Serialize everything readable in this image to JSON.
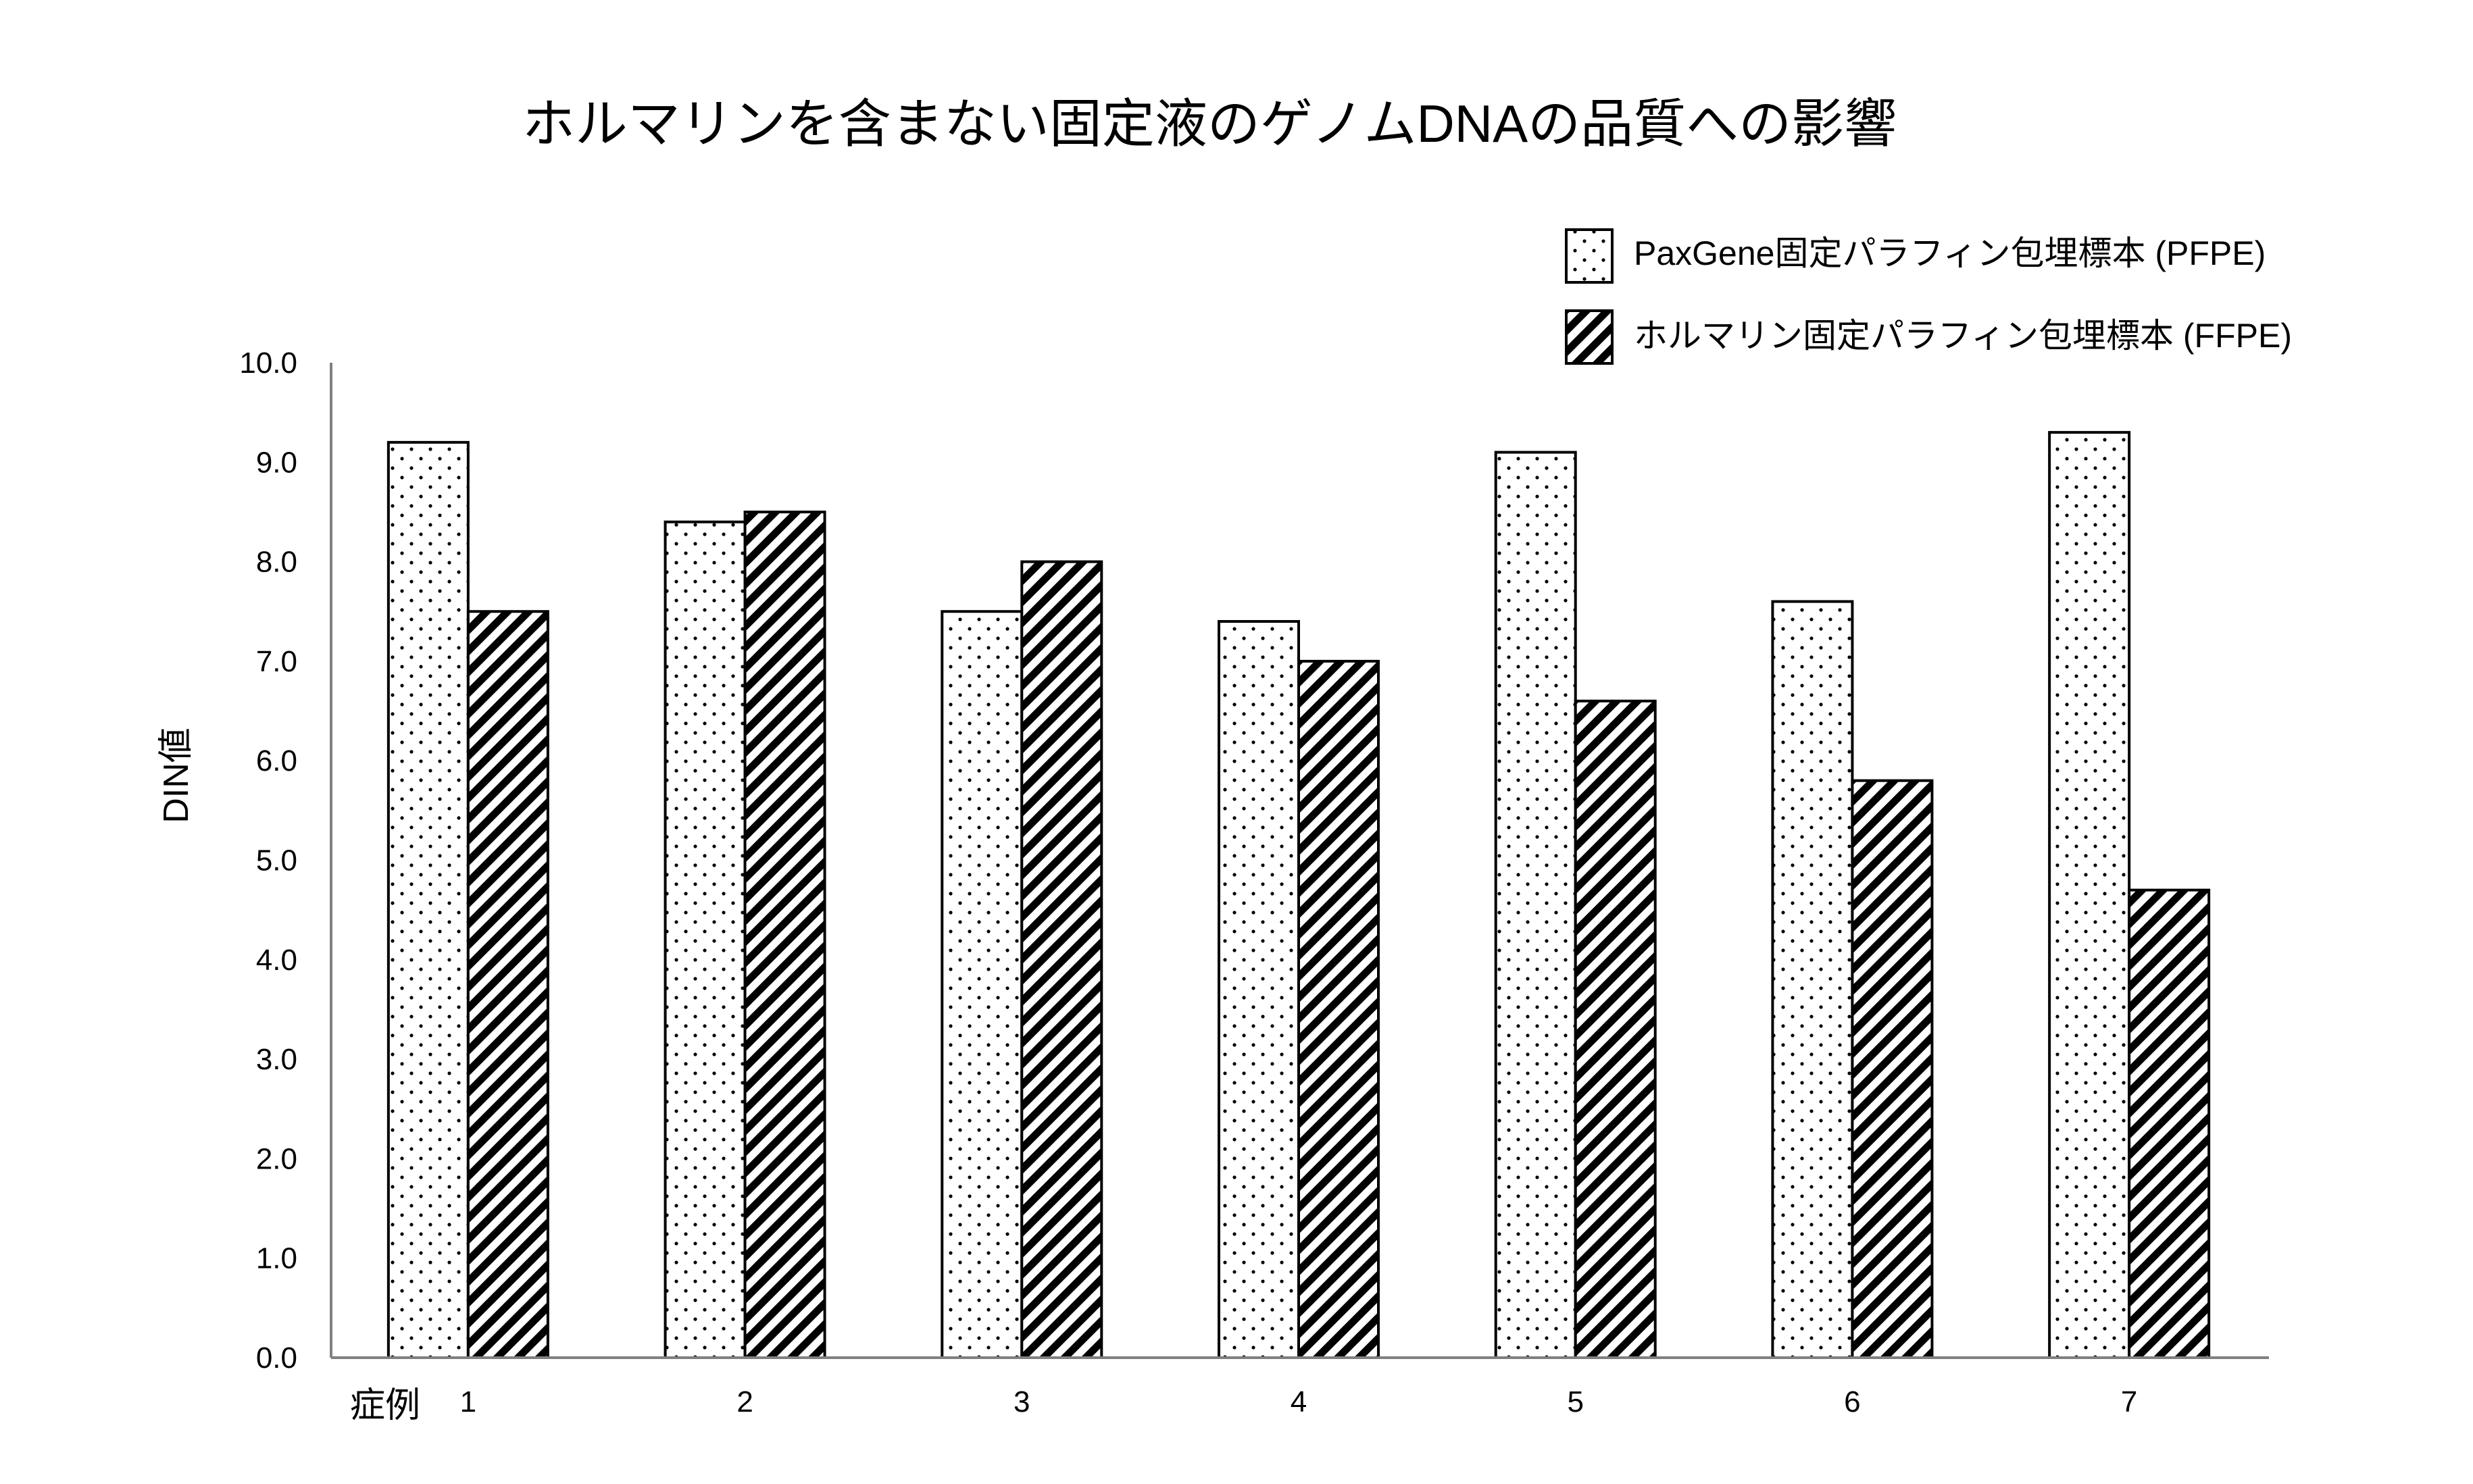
{
  "chart_data": {
    "type": "bar",
    "title": "ホルマリンを含まない固定液のゲノムDNAの品質への影響",
    "ylabel": "DIN値",
    "xlabel": "症例",
    "categories": [
      "1",
      "2",
      "3",
      "4",
      "5",
      "6",
      "7"
    ],
    "ylim": [
      0,
      10
    ],
    "yticks": [
      "0.0",
      "1.0",
      "2.0",
      "3.0",
      "4.0",
      "5.0",
      "6.0",
      "7.0",
      "8.0",
      "9.0",
      "10.0"
    ],
    "grid": false,
    "legend_position": "top-right",
    "series": [
      {
        "name": "PaxGene固定パラフィン包埋標本 (PFPE)",
        "pattern": "dots",
        "values": [
          9.2,
          8.4,
          7.5,
          7.4,
          9.1,
          7.6,
          9.3
        ]
      },
      {
        "name": "ホルマリン固定パラフィン包埋標本 (FFPE)",
        "pattern": "diagonal-hatch",
        "values": [
          7.5,
          8.5,
          8.0,
          7.0,
          6.6,
          5.8,
          4.7
        ]
      }
    ],
    "colors": {
      "bar_stroke": "#000000",
      "bar_fill": "#ffffff",
      "axis": "#808080",
      "text": "#000000"
    }
  }
}
